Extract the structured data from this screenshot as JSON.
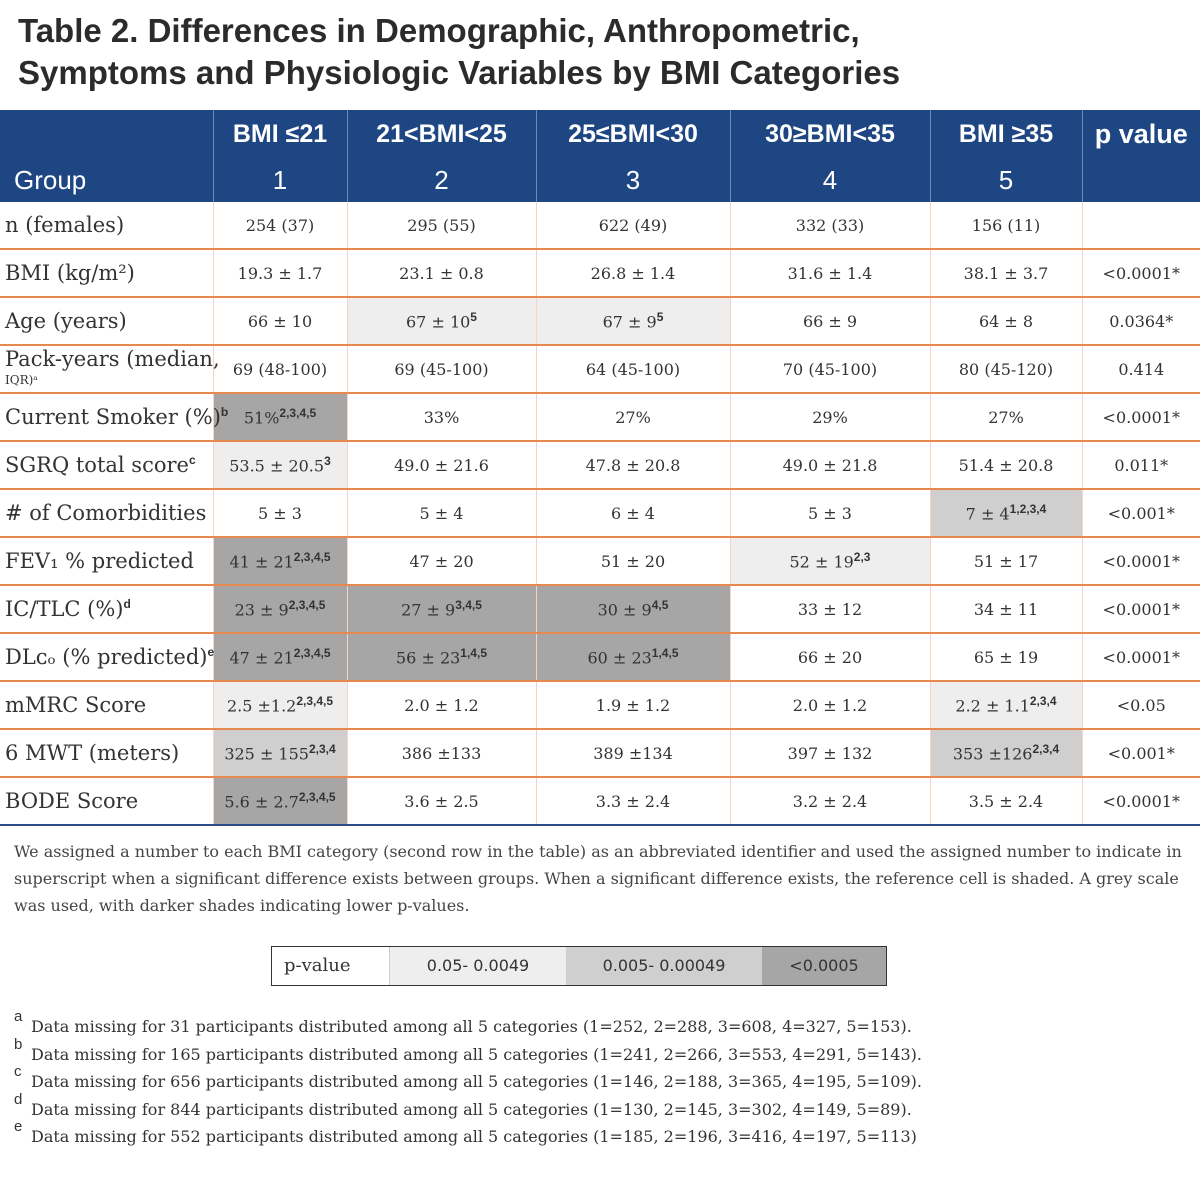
{
  "title": {
    "line1": "Table 2. Differences in Demographic, Anthropometric,",
    "line2": "Symptoms and Physiologic Variables by BMI Categories"
  },
  "header": {
    "group_label": "Group",
    "p_value_label": "p value",
    "categories": [
      {
        "label": "BMI ≤21",
        "number": "1"
      },
      {
        "label": "21<BMI<25",
        "number": "2"
      },
      {
        "label": "25≤BMI<30",
        "number": "3"
      },
      {
        "label": "30≥BMI<35",
        "number": "4"
      },
      {
        "label": "BMI ≥35",
        "number": "5"
      }
    ]
  },
  "rows": [
    {
      "label": "n (females)",
      "cells": [
        {
          "v": "254 (37)",
          "sup": "",
          "s": 0
        },
        {
          "v": "295 (55)",
          "sup": "",
          "s": 0
        },
        {
          "v": "622 (49)",
          "sup": "",
          "s": 0
        },
        {
          "v": "332 (33)",
          "sup": "",
          "s": 0
        },
        {
          "v": "156 (11)",
          "sup": "",
          "s": 0
        }
      ],
      "p": ""
    },
    {
      "label": "BMI (kg/m²)",
      "cells": [
        {
          "v": "19.3 ± 1.7",
          "sup": "",
          "s": 0
        },
        {
          "v": "23.1 ± 0.8",
          "sup": "",
          "s": 0
        },
        {
          "v": "26.8 ± 1.4",
          "sup": "",
          "s": 0
        },
        {
          "v": "31.6 ± 1.4",
          "sup": "",
          "s": 0
        },
        {
          "v": "38.1 ± 3.7",
          "sup": "",
          "s": 0
        }
      ],
      "p": "<0.0001*"
    },
    {
      "label": "Age (years)",
      "cells": [
        {
          "v": "66 ± 10",
          "sup": "",
          "s": 0
        },
        {
          "v": "67 ± 10",
          "sup": "5",
          "s": 1
        },
        {
          "v": "67 ± 9",
          "sup": "5",
          "s": 1
        },
        {
          "v": "66 ± 9",
          "sup": "",
          "s": 0
        },
        {
          "v": "64 ± 8",
          "sup": "",
          "s": 0
        }
      ],
      "p": "0.0364*"
    },
    {
      "label": "Pack-years (median,",
      "label_small": "IQR)ᵃ",
      "cells": [
        {
          "v": "69 (48-100)",
          "sup": "",
          "s": 0
        },
        {
          "v": "69 (45-100)",
          "sup": "",
          "s": 0
        },
        {
          "v": "64 (45-100)",
          "sup": "",
          "s": 0
        },
        {
          "v": "70 (45-100)",
          "sup": "",
          "s": 0
        },
        {
          "v": "80 (45-120)",
          "sup": "",
          "s": 0
        }
      ],
      "p": "0.414"
    },
    {
      "label": "Current Smoker (%)",
      "label_sup": "b",
      "cells": [
        {
          "v": "51%",
          "sup": "2,3,4,5",
          "s": 3
        },
        {
          "v": "33%",
          "sup": "",
          "s": 0
        },
        {
          "v": "27%",
          "sup": "",
          "s": 0
        },
        {
          "v": "29%",
          "sup": "",
          "s": 0
        },
        {
          "v": "27%",
          "sup": "",
          "s": 0
        }
      ],
      "p": "<0.0001*"
    },
    {
      "label": "SGRQ total score",
      "label_sup": "c",
      "cells": [
        {
          "v": "53.5 ± 20.5",
          "sup": "3",
          "s": 1
        },
        {
          "v": "49.0 ± 21.6",
          "sup": "",
          "s": 0
        },
        {
          "v": "47.8 ± 20.8",
          "sup": "",
          "s": 0
        },
        {
          "v": "49.0 ± 21.8",
          "sup": "",
          "s": 0
        },
        {
          "v": "51.4 ± 20.8",
          "sup": "",
          "s": 0
        }
      ],
      "p": "0.011*"
    },
    {
      "label": "# of Comorbidities",
      "cells": [
        {
          "v": "5 ± 3",
          "sup": "",
          "s": 0
        },
        {
          "v": "5 ± 4",
          "sup": "",
          "s": 0
        },
        {
          "v": "6 ± 4",
          "sup": "",
          "s": 0
        },
        {
          "v": "5 ± 3",
          "sup": "",
          "s": 0
        },
        {
          "v": "7 ± 4",
          "sup": "1,2,3,4",
          "s": 2
        }
      ],
      "p": "<0.001*"
    },
    {
      "label": "FEV₁ % predicted",
      "cells": [
        {
          "v": "41 ± 21",
          "sup": "2,3,4,5",
          "s": 3
        },
        {
          "v": "47 ± 20",
          "sup": "",
          "s": 0
        },
        {
          "v": "51 ± 20",
          "sup": "",
          "s": 0
        },
        {
          "v": "52 ± 19",
          "sup": "2,3",
          "s": 1
        },
        {
          "v": "51 ± 17",
          "sup": "",
          "s": 0
        }
      ],
      "p": "<0.0001*"
    },
    {
      "label": "IC/TLC (%)",
      "label_sup": "d",
      "cells": [
        {
          "v": "23 ± 9",
          "sup": "2,3,4,5",
          "s": 3
        },
        {
          "v": "27 ± 9",
          "sup": "3,4,5",
          "s": 3
        },
        {
          "v": "30 ± 9",
          "sup": "4,5",
          "s": 3
        },
        {
          "v": "33 ± 12",
          "sup": "",
          "s": 0
        },
        {
          "v": "34 ± 11",
          "sup": "",
          "s": 0
        }
      ],
      "p": "<0.0001*"
    },
    {
      "label": "DLᴄₒ (% predicted)",
      "label_sup": "e",
      "cells": [
        {
          "v": "47 ± 21",
          "sup": "2,3,4,5",
          "s": 3
        },
        {
          "v": "56 ± 23",
          "sup": "1,4,5",
          "s": 3
        },
        {
          "v": "60 ± 23",
          "sup": "1,4,5",
          "s": 3
        },
        {
          "v": "66 ± 20",
          "sup": "",
          "s": 0
        },
        {
          "v": "65 ± 19",
          "sup": "",
          "s": 0
        }
      ],
      "p": "<0.0001*"
    },
    {
      "label": "mMRC Score",
      "cells": [
        {
          "v": "2.5 ±1.2",
          "sup": "2,3,4,5",
          "s": 1
        },
        {
          "v": "2.0 ± 1.2",
          "sup": "",
          "s": 0
        },
        {
          "v": "1.9 ± 1.2",
          "sup": "",
          "s": 0
        },
        {
          "v": "2.0 ± 1.2",
          "sup": "",
          "s": 0
        },
        {
          "v": "2.2 ± 1.1",
          "sup": "2,3,4",
          "s": 1
        }
      ],
      "p": "<0.05"
    },
    {
      "label": "6 MWT (meters)",
      "cells": [
        {
          "v": "325 ± 155",
          "sup": "2,3,4",
          "s": 2
        },
        {
          "v": "386 ±133",
          "sup": "",
          "s": 0
        },
        {
          "v": "389 ±134",
          "sup": "",
          "s": 0
        },
        {
          "v": "397 ± 132",
          "sup": "",
          "s": 0
        },
        {
          "v": "353 ±126",
          "sup": "2,3,4",
          "s": 2
        }
      ],
      "p": "<0.001*"
    },
    {
      "label": "BODE Score",
      "cells": [
        {
          "v": "5.6 ± 2.7",
          "sup": "2,3,4,5",
          "s": 3
        },
        {
          "v": "3.6 ± 2.5",
          "sup": "",
          "s": 0
        },
        {
          "v": "3.3 ± 2.4",
          "sup": "",
          "s": 0
        },
        {
          "v": "3.2 ± 2.4",
          "sup": "",
          "s": 0
        },
        {
          "v": "3.5 ± 2.4",
          "sup": "",
          "s": 0
        }
      ],
      "p": "<0.0001*"
    }
  ],
  "note": "We assigned a number to each BMI category (second row in the table) as an abbreviated identifier and used the assigned number to indicate in superscript when a significant difference exists between groups. When a significant difference exists, the reference cell is shaded. A grey scale was used, with darker shades indicating lower p-values.",
  "legend": {
    "label": "p-value",
    "items": [
      {
        "text": "0.05- 0.0049",
        "color": "#eeeeee"
      },
      {
        "text": "0.005- 0.00049",
        "color": "#cfcfcf"
      },
      {
        "text": "<0.0005",
        "color": "#a6a6a6"
      }
    ]
  },
  "footnotes": [
    {
      "mark": "a",
      "text": "Data missing for 31 participants distributed among all 5 categories (1=252, 2=288, 3=608, 4=327, 5=153)."
    },
    {
      "mark": "b",
      "text": "Data missing for 165 participants distributed among all 5 categories (1=241, 2=266, 3=553, 4=291, 5=143)."
    },
    {
      "mark": "c",
      "text": "Data missing for 656 participants distributed among all 5 categories (1=146, 2=188, 3=365, 4=195, 5=109)."
    },
    {
      "mark": "d",
      "text": "Data missing for 844 participants distributed among all 5 categories (1=130, 2=145, 3=302, 4=149, 5=89)."
    },
    {
      "mark": "e",
      "text": "Data missing for 552 participants distributed among all 5 categories (1=185, 2=196, 3=416, 4=197, 5=113)"
    }
  ],
  "colors": {
    "header_bg": "#1e4683",
    "row_rule": "#e8874f",
    "shade_light": "#eeeeee",
    "shade_mid": "#cfcfcf",
    "shade_dark": "#a6a6a6"
  }
}
